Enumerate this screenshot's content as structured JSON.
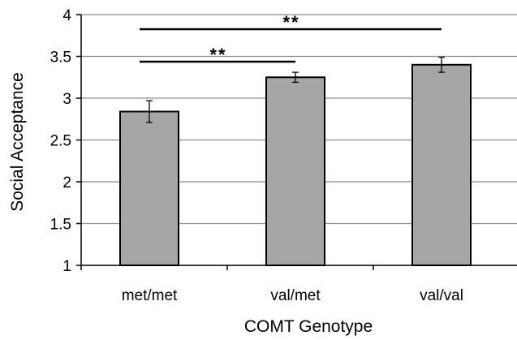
{
  "chart_data": {
    "type": "bar",
    "xlabel": "COMT Genotype",
    "ylabel": "Social Acceptance",
    "ylim": [
      1,
      4
    ],
    "yticks": [
      1,
      1.5,
      2,
      2.5,
      3,
      3.5,
      4
    ],
    "yticks_labels": [
      "1",
      "1.5",
      "2",
      "2.5",
      "3",
      "3.5",
      "4"
    ],
    "grid": true,
    "categories": [
      "met/met",
      "val/met",
      "val/val"
    ],
    "values": [
      2.84,
      3.25,
      3.4
    ],
    "error_bars": [
      0.13,
      0.06,
      0.09
    ],
    "bar_color": "#a6a6a6",
    "significance": [
      {
        "from": "met/met",
        "to": "val/met",
        "label": "**"
      },
      {
        "from": "met/met",
        "to": "val/val",
        "label": "**"
      }
    ]
  }
}
